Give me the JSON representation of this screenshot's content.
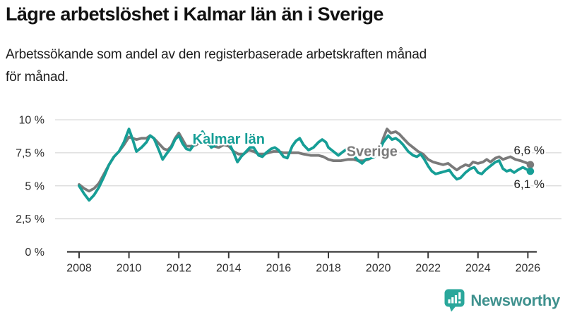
{
  "header": {
    "title": "Lägre arbetslöshet i Kalmar län än i Sverige",
    "subtitle_line1": "Arbetssökande som andel av den registerbaserade arbetskraften månad",
    "subtitle_line2": "för månad."
  },
  "footer": {
    "brand": "Newsworthy",
    "brand_color": "#3f918e",
    "icon_color": "#2aa79b",
    "icon_name": "newsworthy-speech-bubble-barchart-icon"
  },
  "chart_data": {
    "type": "line",
    "title": "Lägre arbetslöshet i Kalmar län än i Sverige",
    "subtitle": "Arbetssökande som andel av den registerbaserade arbetskraften månad för månad.",
    "xlabel": "",
    "ylabel": "",
    "xlim": [
      2007.6,
      2026.65
    ],
    "ylim": [
      0,
      10
    ],
    "grid": "horizontal",
    "grid_color": "#d9d9d9",
    "axis_color": "#383838",
    "x_axis": {
      "ticks": [
        {
          "value": 2008,
          "label": "2008"
        },
        {
          "value": 2010,
          "label": "2010"
        },
        {
          "value": 2012,
          "label": "2012"
        },
        {
          "value": 2014,
          "label": "2014"
        },
        {
          "value": 2016,
          "label": "2016"
        },
        {
          "value": 2018,
          "label": "2018"
        },
        {
          "value": 2020,
          "label": "2020"
        },
        {
          "value": 2022,
          "label": "2022"
        },
        {
          "value": 2024,
          "label": "2024"
        },
        {
          "value": 2026,
          "label": "2026"
        }
      ]
    },
    "y_axis": {
      "ticks": [
        {
          "value": 0,
          "label": "0 %"
        },
        {
          "value": 2.5,
          "label": "2,5 %"
        },
        {
          "value": 5,
          "label": "5 %"
        },
        {
          "value": 7.5,
          "label": "7,5 %"
        },
        {
          "value": 10,
          "label": "10 %"
        }
      ]
    },
    "annotations": [
      {
        "text": "Kalmar län",
        "x": 2014.0,
        "y": 8.2,
        "color": "#169e96"
      },
      {
        "text": "Sverige",
        "x": 2019.75,
        "y": 7.25,
        "color": "#7a7a7a"
      }
    ],
    "series": [
      {
        "name": "Sverige",
        "color": "#7a7a7a",
        "end_label": "6,6 %",
        "end_label_side": "above",
        "end_value": 6.6,
        "points": [
          [
            2008.0,
            5.1
          ],
          [
            2008.2,
            4.8
          ],
          [
            2008.4,
            4.6
          ],
          [
            2008.6,
            4.8
          ],
          [
            2008.8,
            5.2
          ],
          [
            2009.0,
            5.9
          ],
          [
            2009.2,
            6.6
          ],
          [
            2009.4,
            7.2
          ],
          [
            2009.6,
            7.6
          ],
          [
            2009.8,
            8.1
          ],
          [
            2010.0,
            8.7
          ],
          [
            2010.15,
            8.6
          ],
          [
            2010.3,
            8.5
          ],
          [
            2010.5,
            8.6
          ],
          [
            2010.7,
            8.6
          ],
          [
            2010.85,
            8.8
          ],
          [
            2011.0,
            8.6
          ],
          [
            2011.2,
            8.2
          ],
          [
            2011.4,
            7.8
          ],
          [
            2011.55,
            7.7
          ],
          [
            2011.7,
            8.0
          ],
          [
            2011.85,
            8.6
          ],
          [
            2012.0,
            9.0
          ],
          [
            2012.15,
            8.5
          ],
          [
            2012.3,
            8.0
          ],
          [
            2012.5,
            8.0
          ],
          [
            2012.7,
            8.1
          ],
          [
            2012.85,
            8.3
          ],
          [
            2013.0,
            8.4
          ],
          [
            2013.2,
            8.1
          ],
          [
            2013.4,
            8.0
          ],
          [
            2013.6,
            7.9
          ],
          [
            2013.8,
            8.1
          ],
          [
            2014.0,
            8.0
          ],
          [
            2014.2,
            7.6
          ],
          [
            2014.4,
            7.4
          ],
          [
            2014.6,
            7.4
          ],
          [
            2014.8,
            7.7
          ],
          [
            2015.0,
            7.6
          ],
          [
            2015.2,
            7.4
          ],
          [
            2015.4,
            7.4
          ],
          [
            2015.6,
            7.5
          ],
          [
            2015.8,
            7.6
          ],
          [
            2016.0,
            7.6
          ],
          [
            2016.2,
            7.5
          ],
          [
            2016.5,
            7.5
          ],
          [
            2016.8,
            7.5
          ],
          [
            2017.0,
            7.4
          ],
          [
            2017.3,
            7.3
          ],
          [
            2017.6,
            7.3
          ],
          [
            2017.8,
            7.2
          ],
          [
            2018.0,
            7.0
          ],
          [
            2018.2,
            6.9
          ],
          [
            2018.5,
            6.9
          ],
          [
            2018.8,
            7.0
          ],
          [
            2019.0,
            7.0
          ],
          [
            2019.2,
            6.9
          ],
          [
            2019.4,
            6.9
          ],
          [
            2019.6,
            7.0
          ],
          [
            2019.8,
            7.2
          ],
          [
            2020.0,
            7.4
          ],
          [
            2020.2,
            8.6
          ],
          [
            2020.35,
            9.3
          ],
          [
            2020.5,
            9.0
          ],
          [
            2020.7,
            9.1
          ],
          [
            2020.85,
            8.9
          ],
          [
            2021.0,
            8.6
          ],
          [
            2021.2,
            8.2
          ],
          [
            2021.4,
            7.9
          ],
          [
            2021.6,
            7.6
          ],
          [
            2021.8,
            7.4
          ],
          [
            2022.0,
            7.0
          ],
          [
            2022.2,
            6.8
          ],
          [
            2022.4,
            6.7
          ],
          [
            2022.6,
            6.6
          ],
          [
            2022.8,
            6.7
          ],
          [
            2023.0,
            6.4
          ],
          [
            2023.15,
            6.2
          ],
          [
            2023.3,
            6.4
          ],
          [
            2023.5,
            6.6
          ],
          [
            2023.65,
            6.5
          ],
          [
            2023.8,
            6.8
          ],
          [
            2024.0,
            6.7
          ],
          [
            2024.2,
            6.8
          ],
          [
            2024.35,
            7.0
          ],
          [
            2024.5,
            6.8
          ],
          [
            2024.7,
            7.1
          ],
          [
            2024.85,
            7.2
          ],
          [
            2025.0,
            7.0
          ],
          [
            2025.15,
            7.1
          ],
          [
            2025.3,
            7.2
          ],
          [
            2025.5,
            7.0
          ],
          [
            2025.7,
            6.9
          ],
          [
            2025.85,
            6.8
          ],
          [
            2026.0,
            6.7
          ],
          [
            2026.1,
            6.6
          ]
        ]
      },
      {
        "name": "Kalmar län",
        "color": "#169e96",
        "end_label": "6,1 %",
        "end_label_side": "below",
        "end_value": 6.1,
        "points": [
          [
            2008.0,
            5.0
          ],
          [
            2008.2,
            4.4
          ],
          [
            2008.4,
            3.9
          ],
          [
            2008.6,
            4.3
          ],
          [
            2008.8,
            4.9
          ],
          [
            2009.0,
            5.7
          ],
          [
            2009.2,
            6.6
          ],
          [
            2009.4,
            7.2
          ],
          [
            2009.6,
            7.6
          ],
          [
            2009.8,
            8.3
          ],
          [
            2010.0,
            9.3
          ],
          [
            2010.15,
            8.5
          ],
          [
            2010.3,
            7.6
          ],
          [
            2010.5,
            7.9
          ],
          [
            2010.7,
            8.3
          ],
          [
            2010.85,
            8.8
          ],
          [
            2011.0,
            8.6
          ],
          [
            2011.2,
            7.7
          ],
          [
            2011.35,
            7.0
          ],
          [
            2011.5,
            7.4
          ],
          [
            2011.7,
            7.9
          ],
          [
            2011.85,
            8.5
          ],
          [
            2012.0,
            8.8
          ],
          [
            2012.15,
            8.2
          ],
          [
            2012.3,
            7.8
          ],
          [
            2012.45,
            7.7
          ],
          [
            2012.6,
            8.1
          ],
          [
            2012.8,
            8.7
          ],
          [
            2012.95,
            9.1
          ],
          [
            2013.1,
            8.6
          ],
          [
            2013.3,
            7.9
          ],
          [
            2013.5,
            8.1
          ],
          [
            2013.7,
            8.4
          ],
          [
            2013.85,
            8.6
          ],
          [
            2014.0,
            8.3
          ],
          [
            2014.2,
            7.5
          ],
          [
            2014.35,
            6.8
          ],
          [
            2014.5,
            7.2
          ],
          [
            2014.7,
            7.6
          ],
          [
            2014.85,
            7.9
          ],
          [
            2015.0,
            7.9
          ],
          [
            2015.2,
            7.3
          ],
          [
            2015.35,
            7.2
          ],
          [
            2015.5,
            7.5
          ],
          [
            2015.7,
            7.8
          ],
          [
            2015.85,
            7.9
          ],
          [
            2016.0,
            7.7
          ],
          [
            2016.2,
            7.2
          ],
          [
            2016.35,
            7.1
          ],
          [
            2016.55,
            8.0
          ],
          [
            2016.7,
            8.4
          ],
          [
            2016.85,
            8.6
          ],
          [
            2017.0,
            8.1
          ],
          [
            2017.2,
            7.7
          ],
          [
            2017.4,
            7.9
          ],
          [
            2017.6,
            8.3
          ],
          [
            2017.75,
            8.5
          ],
          [
            2017.9,
            8.3
          ],
          [
            2018.0,
            7.9
          ],
          [
            2018.2,
            7.6
          ],
          [
            2018.4,
            7.3
          ],
          [
            2018.6,
            7.6
          ],
          [
            2018.75,
            7.8
          ],
          [
            2018.9,
            7.7
          ],
          [
            2019.0,
            7.3
          ],
          [
            2019.2,
            6.9
          ],
          [
            2019.35,
            6.7
          ],
          [
            2019.5,
            7.0
          ],
          [
            2019.7,
            7.1
          ],
          [
            2019.85,
            7.2
          ],
          [
            2020.0,
            7.5
          ],
          [
            2020.2,
            8.3
          ],
          [
            2020.4,
            8.8
          ],
          [
            2020.55,
            8.5
          ],
          [
            2020.7,
            8.6
          ],
          [
            2020.85,
            8.4
          ],
          [
            2021.0,
            8.1
          ],
          [
            2021.2,
            7.6
          ],
          [
            2021.4,
            7.3
          ],
          [
            2021.55,
            7.2
          ],
          [
            2021.7,
            7.4
          ],
          [
            2021.85,
            7.0
          ],
          [
            2022.0,
            6.5
          ],
          [
            2022.15,
            6.1
          ],
          [
            2022.3,
            5.9
          ],
          [
            2022.5,
            6.0
          ],
          [
            2022.7,
            6.1
          ],
          [
            2022.85,
            6.2
          ],
          [
            2023.0,
            5.8
          ],
          [
            2023.15,
            5.5
          ],
          [
            2023.3,
            5.6
          ],
          [
            2023.5,
            6.0
          ],
          [
            2023.7,
            6.3
          ],
          [
            2023.85,
            6.4
          ],
          [
            2024.0,
            6.0
          ],
          [
            2024.15,
            5.9
          ],
          [
            2024.3,
            6.2
          ],
          [
            2024.5,
            6.5
          ],
          [
            2024.7,
            6.8
          ],
          [
            2024.85,
            6.9
          ],
          [
            2025.0,
            6.3
          ],
          [
            2025.15,
            6.1
          ],
          [
            2025.3,
            6.2
          ],
          [
            2025.45,
            6.0
          ],
          [
            2025.6,
            6.2
          ],
          [
            2025.8,
            6.4
          ],
          [
            2026.0,
            6.2
          ],
          [
            2026.1,
            6.1
          ]
        ]
      }
    ],
    "legend_position": "inline-labels"
  }
}
